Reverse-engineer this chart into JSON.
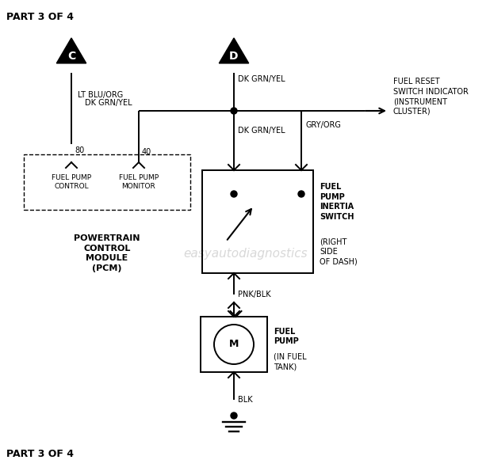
{
  "bg_color": "#ffffff",
  "line_color": "#000000",
  "watermark_color": "#c8c8c8",
  "watermark_text": "easyautodiagnostics",
  "title_text": "PART 3 OF 4",
  "bottom_text": "PART 3 OF 4",
  "wire_lt_blu_org": "LT BLU/ORG",
  "wire_dk_grn_yel_1": "DK GRN/YEL",
  "wire_dk_grn_yel_2": "DK GRN/YEL",
  "wire_dk_grn_yel_3": "DK GRN/YEL",
  "wire_gry_org": "GRY/ORG",
  "wire_pnk_blk": "PNK/BLK",
  "wire_blk": "BLK",
  "pin_80": "80",
  "pin_40": "40",
  "pcm_label": "POWERTRAIN\nCONTROL\nMODULE\n(PCM)",
  "pcm_fp_control": "FUEL PUMP\nCONTROL",
  "pcm_fp_monitor": "FUEL PUMP\nMONITOR",
  "inertia_switch_label_bold": "FUEL\nPUMP\nINERTIA\nSWITCH",
  "inertia_switch_label_normal": "(RIGHT\nSIDE\nOF DASH)",
  "fuel_pump_label_bold": "FUEL\nPUMP",
  "fuel_pump_label_normal": "(IN FUEL\nTANK)",
  "fuel_reset_label": "FUEL RESET\nSWITCH INDICATOR\n(INSTRUMENT\nCLUSTER)"
}
